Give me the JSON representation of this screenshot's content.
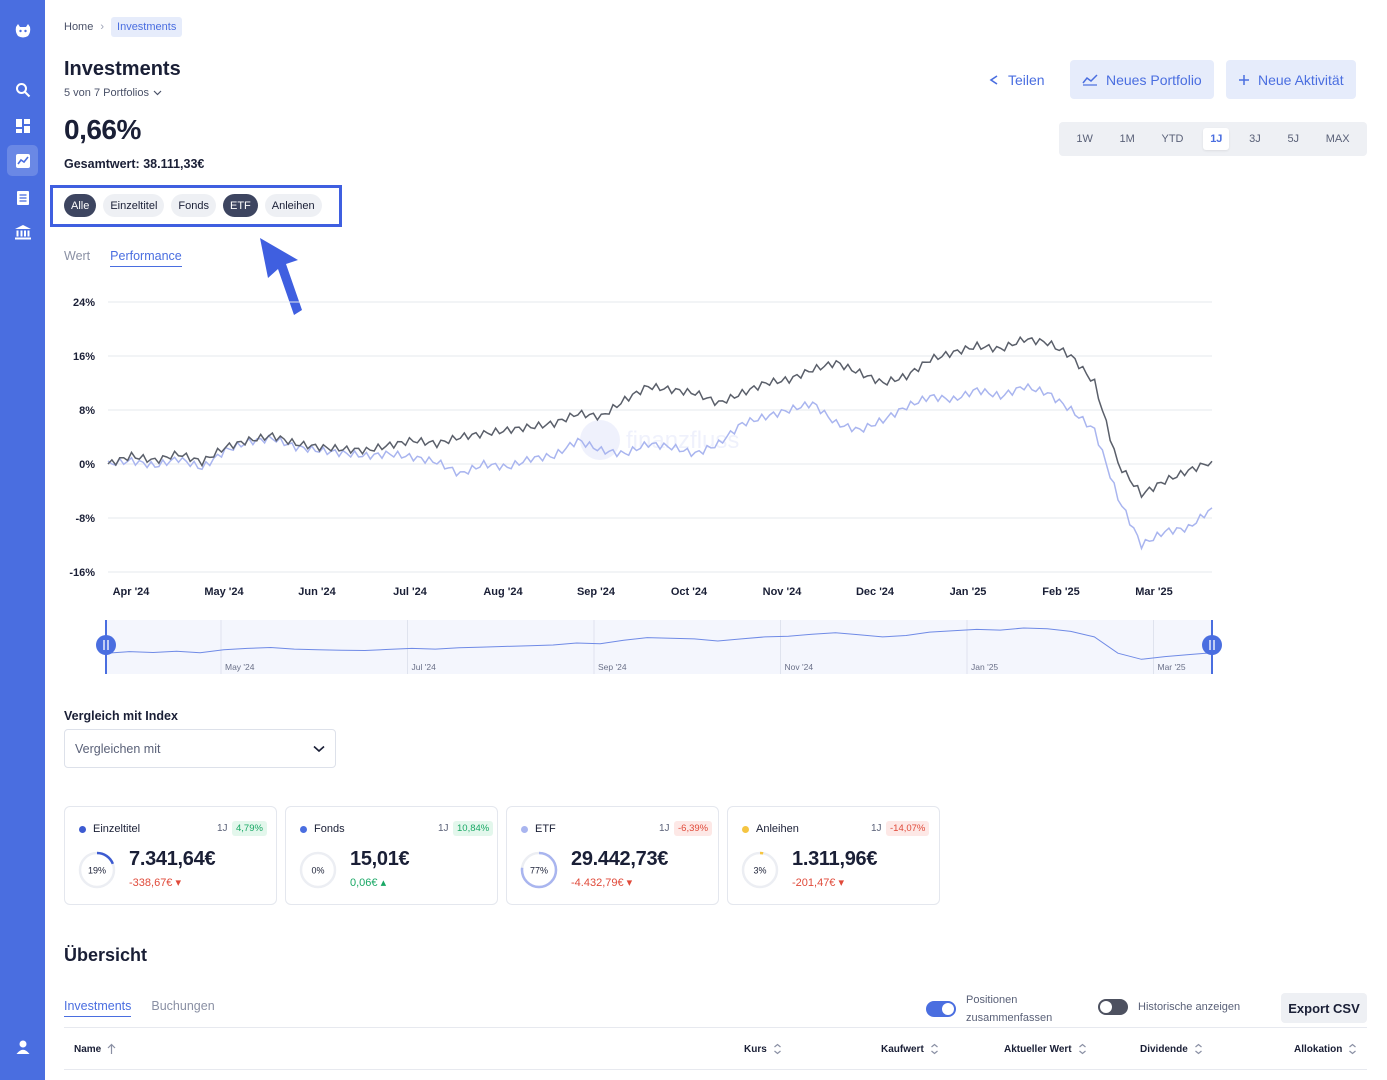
{
  "breadcrumb": {
    "home": "Home",
    "current": "Investments"
  },
  "header": {
    "title": "Investments",
    "portfolio_select": "5 von 7 Portfolios",
    "performance": "0,66%",
    "total_value": "Gesamtwert: 38.111,33€"
  },
  "actions": {
    "share": "Teilen",
    "new_portfolio": "Neues Portfolio",
    "new_activity": "Neue Aktivität"
  },
  "range": {
    "items": [
      "1W",
      "1M",
      "YTD",
      "1J",
      "3J",
      "5J",
      "MAX"
    ],
    "active": "1J"
  },
  "filters": {
    "items": [
      "Alle",
      "Einzeltitel",
      "Fonds",
      "ETF",
      "Anleihen"
    ],
    "active": [
      "Alle",
      "ETF"
    ]
  },
  "view_tabs": {
    "items": [
      "Wert",
      "Performance"
    ],
    "active": "Performance"
  },
  "watermark": "finanzfluss",
  "chart_data": {
    "type": "line",
    "yticks": [
      "24%",
      "16%",
      "8%",
      "0%",
      "-8%",
      "-16%"
    ],
    "ylim": [
      -16,
      24
    ],
    "xticks": [
      "Apr '24",
      "May '24",
      "Jun '24",
      "Jul '24",
      "Aug '24",
      "Sep '24",
      "Oct '24",
      "Nov '24",
      "Dec '24",
      "Jan '25",
      "Feb '25",
      "Mar '25"
    ],
    "navigator_ticks": [
      "May '24",
      "Jul '24",
      "Sep '24",
      "Nov '24",
      "Jan '25",
      "Mar '25"
    ],
    "series": [
      {
        "color": "#5a5f6a",
        "values": [
          0,
          1.2,
          0.5,
          1.5,
          0.3,
          2.5,
          3.5,
          4.2,
          3.0,
          2.5,
          2.2,
          2.0,
          2.8,
          3.5,
          3.0,
          4.0,
          4.5,
          5.0,
          5.5,
          6.0,
          7.5,
          7.0,
          9.5,
          11.5,
          11.0,
          10.5,
          9.0,
          10.5,
          12.0,
          12.5,
          14.0,
          15.0,
          13.5,
          12.0,
          13.0,
          15.5,
          16.5,
          17.5,
          17.0,
          18.5,
          18.0,
          16.0,
          12.0,
          0,
          -4.5,
          -2.5,
          -1.0,
          0.4
        ]
      },
      {
        "color": "#a9b5ef",
        "values": [
          0,
          0.5,
          -0.3,
          0.8,
          -0.6,
          2.0,
          3.3,
          3.8,
          2.5,
          2.0,
          1.6,
          1.2,
          1.5,
          1.0,
          0.3,
          -1.5,
          0.0,
          -0.5,
          0.8,
          1.2,
          3.5,
          2.0,
          1.5,
          3.0,
          2.5,
          1.5,
          3.0,
          6.0,
          7.0,
          8.0,
          9.0,
          6.0,
          5.0,
          6.5,
          8.5,
          10.0,
          9.5,
          11.0,
          10.0,
          11.5,
          10.5,
          8.0,
          5.0,
          -5.0,
          -12.0,
          -10.0,
          -9.5,
          -6.5
        ]
      }
    ]
  },
  "compare": {
    "label": "Vergleich mit Index",
    "placeholder": "Vergleichen mit"
  },
  "cards": [
    {
      "name": "Einzeltitel",
      "period": "1J",
      "badge": "4,79%",
      "badge_type": "pos",
      "pct": "19%",
      "pct_value": 0.19,
      "amount": "7.341,64€",
      "delta": "-338,67€ ▾",
      "delta_type": "neg",
      "color": "#3d5bd1"
    },
    {
      "name": "Fonds",
      "period": "1J",
      "badge": "10,84%",
      "badge_type": "pos",
      "pct": "0%",
      "pct_value": 0,
      "amount": "15,01€",
      "delta": "0,06€ ▴",
      "delta_type": "pos",
      "color": "#4a6ee0"
    },
    {
      "name": "ETF",
      "period": "1J",
      "badge": "-6,39%",
      "badge_type": "neg",
      "pct": "77%",
      "pct_value": 0.77,
      "amount": "29.442,73€",
      "delta": "-4.432,79€ ▾",
      "delta_type": "neg",
      "color": "#a9b5ef"
    },
    {
      "name": "Anleihen",
      "period": "1J",
      "badge": "-14,07%",
      "badge_type": "neg",
      "pct": "3%",
      "pct_value": 0.03,
      "amount": "1.311,96€",
      "delta": "-201,47€ ▾",
      "delta_type": "neg",
      "color": "#f5c542"
    }
  ],
  "overview": {
    "title": "Übersicht",
    "tabs": [
      "Investments",
      "Buchungen"
    ],
    "toggle1_label_line1": "Positionen",
    "toggle1_label_line2": "zusammenfassen",
    "toggle2_label": "Historische anzeigen",
    "export": "Export CSV",
    "columns": [
      "Name",
      "Kurs",
      "Kaufwert",
      "Aktueller Wert",
      "Dividende",
      "Allokation"
    ]
  }
}
